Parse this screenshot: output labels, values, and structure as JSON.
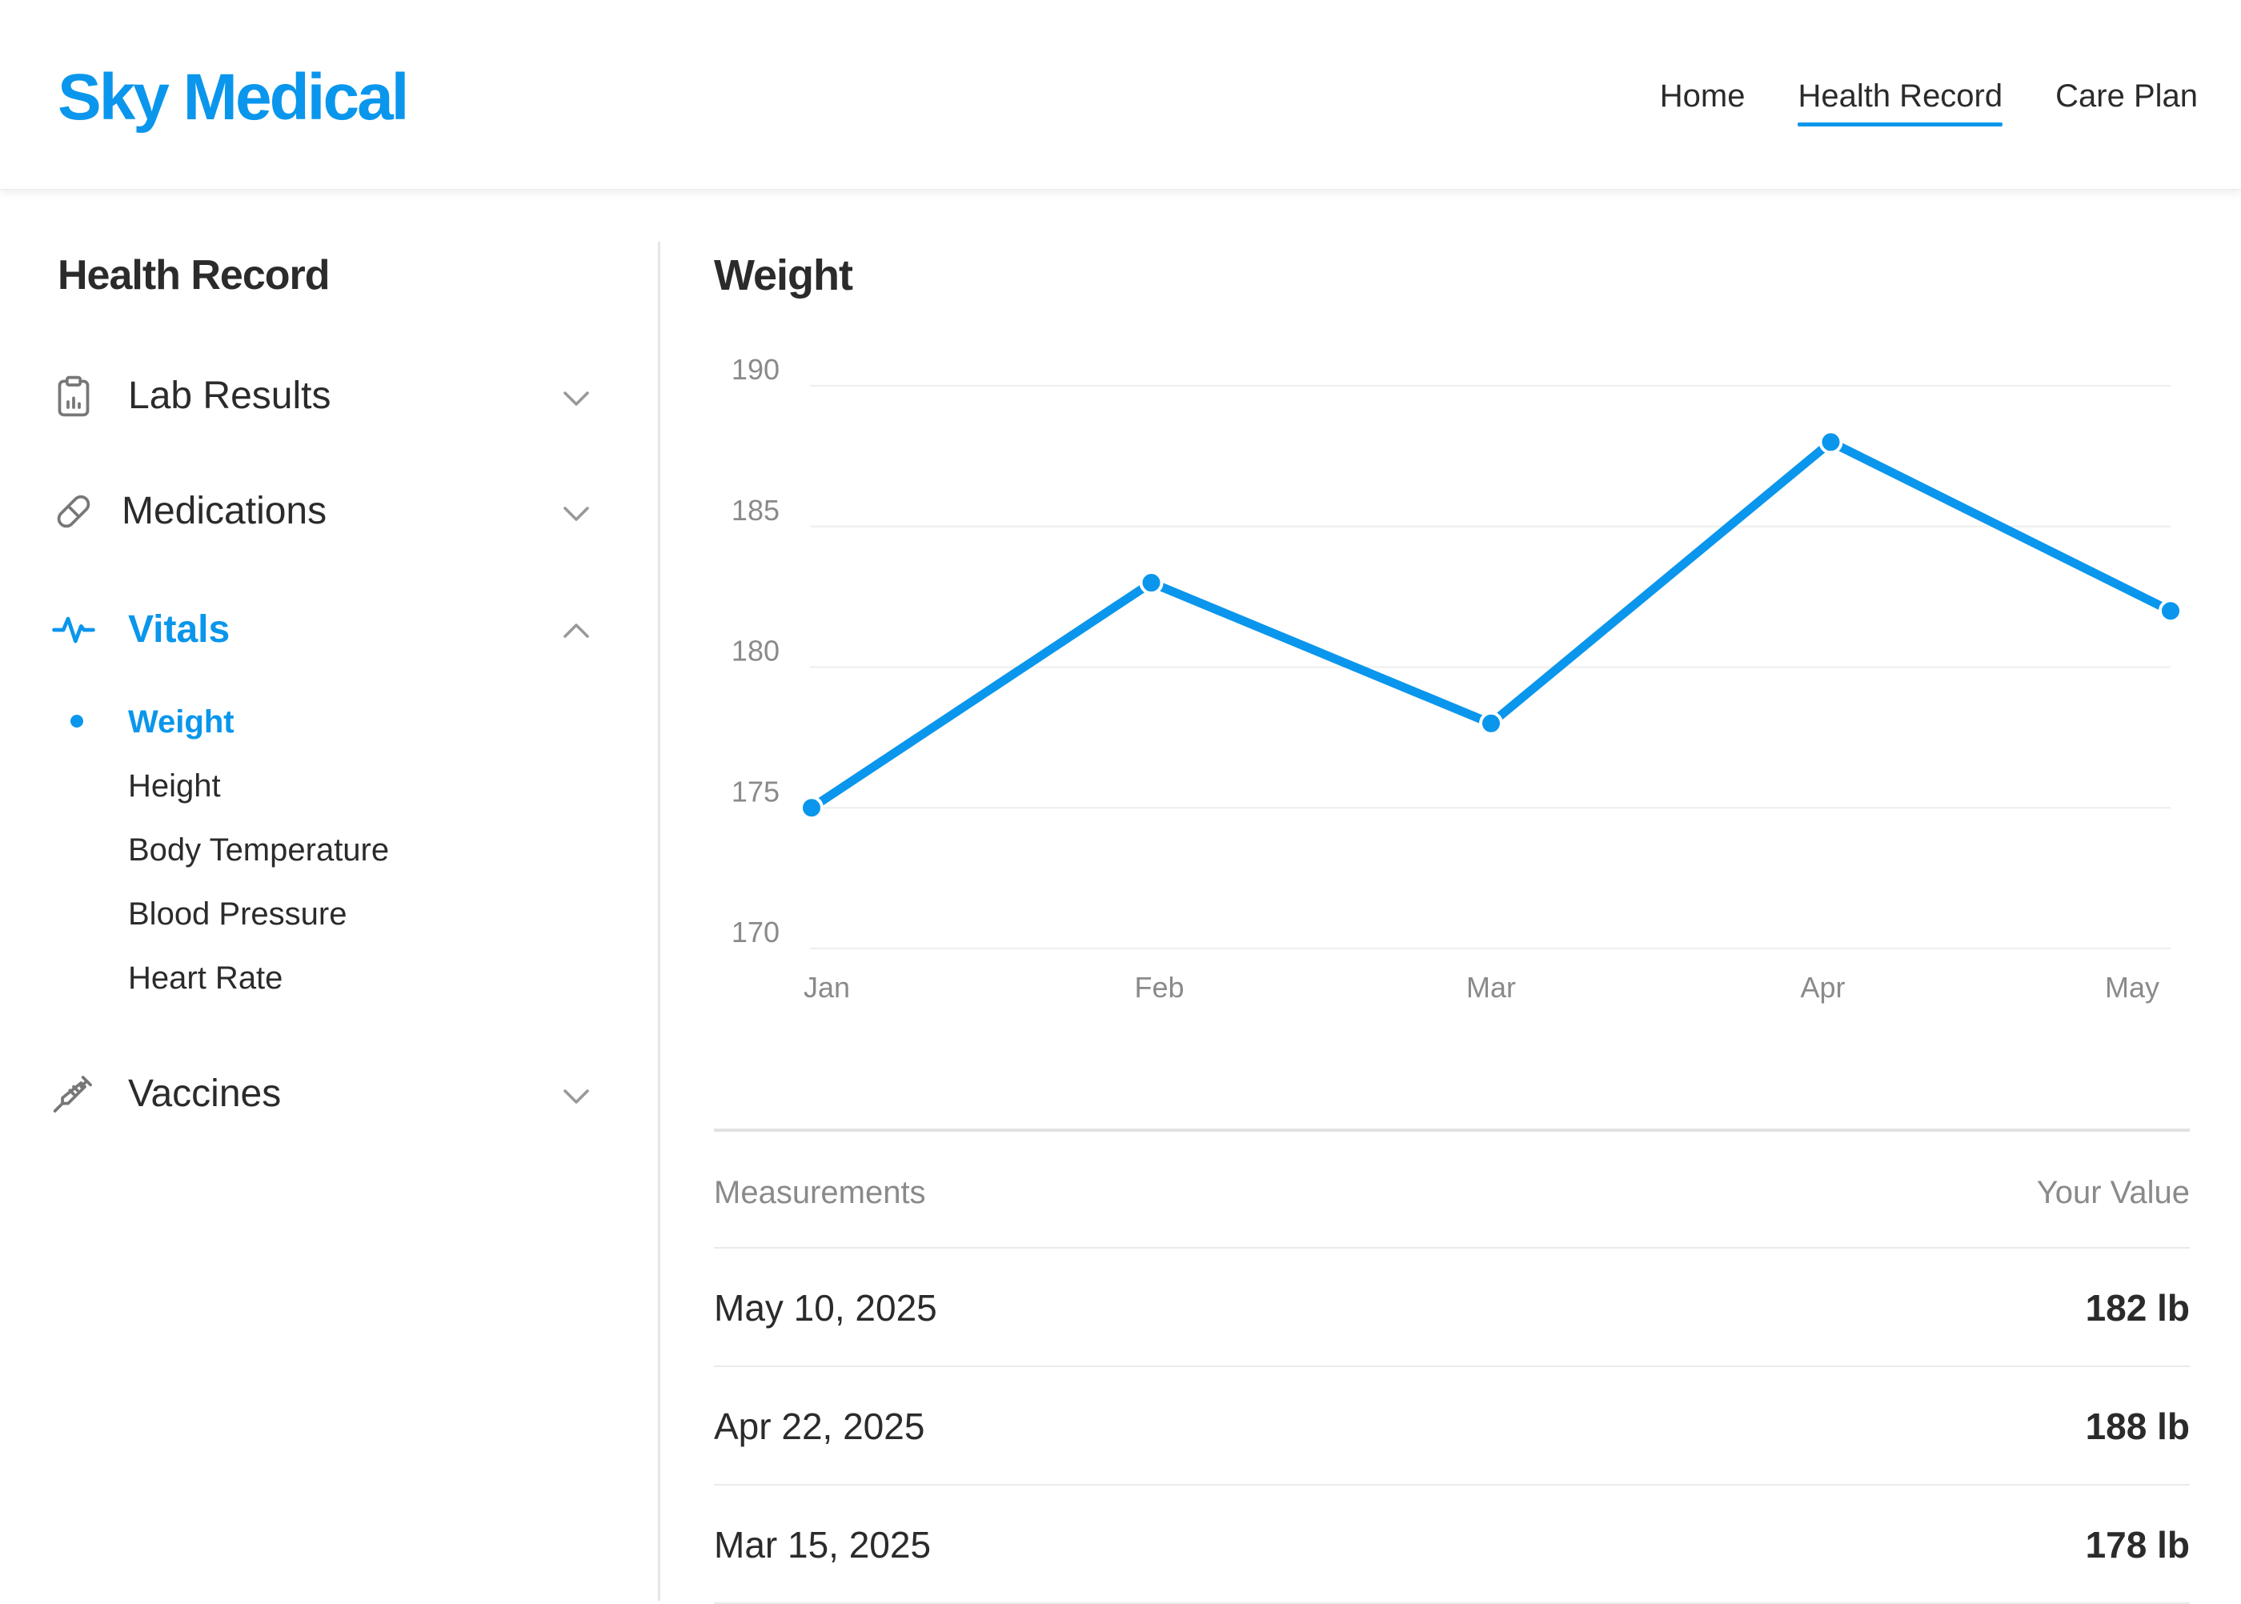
{
  "header": {
    "brand": "Sky Medical",
    "nav": [
      {
        "label": "Home",
        "active": false
      },
      {
        "label": "Health Record",
        "active": true
      },
      {
        "label": "Care Plan",
        "active": false
      }
    ]
  },
  "sidebar": {
    "title": "Health Record",
    "sections": [
      {
        "label": "Lab Results",
        "icon": "clipboard-chart-icon",
        "expanded": false
      },
      {
        "label": "Medications",
        "icon": "pill-icon",
        "expanded": false
      },
      {
        "label": "Vitals",
        "icon": "pulse-icon",
        "expanded": true
      },
      {
        "label": "Vaccines",
        "icon": "syringe-icon",
        "expanded": false
      }
    ],
    "vitals_items": [
      {
        "label": "Weight",
        "active": true
      },
      {
        "label": "Height",
        "active": false
      },
      {
        "label": "Body Temperature",
        "active": false
      },
      {
        "label": "Blood Pressure",
        "active": false
      },
      {
        "label": "Heart Rate",
        "active": false
      }
    ]
  },
  "main": {
    "title": "Weight",
    "table": {
      "col_measurements": "Measurements",
      "col_value": "Your Value",
      "rows": [
        {
          "date": "May 10, 2025",
          "value": "182 lb"
        },
        {
          "date": "Apr 22, 2025",
          "value": "188 lb"
        },
        {
          "date": "Mar 15, 2025",
          "value": "178 lb"
        }
      ]
    }
  },
  "colors": {
    "accent": "#0a96ec",
    "text": "#2b2b2b",
    "muted": "#8a8a8a",
    "grid": "#eeeeee"
  },
  "chart_data": {
    "type": "line",
    "title": "",
    "xlabel": "",
    "ylabel": "",
    "categories": [
      "Jan",
      "Feb",
      "Mar",
      "Apr",
      "May"
    ],
    "values": [
      175,
      183,
      178,
      188,
      182
    ],
    "ylim": [
      170,
      190
    ],
    "yticks": [
      170,
      175,
      180,
      185,
      190
    ],
    "grid": true,
    "legend": "none"
  }
}
